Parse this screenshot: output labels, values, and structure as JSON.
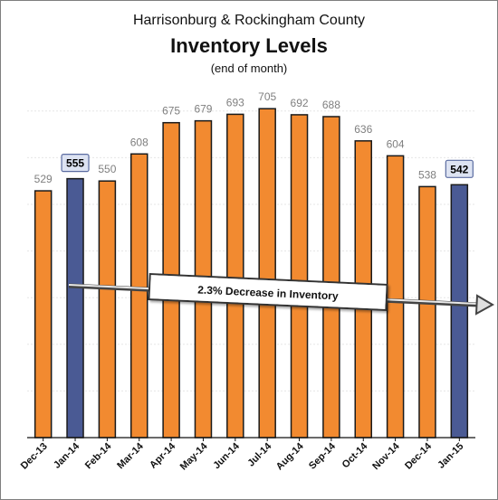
{
  "chart_data": {
    "type": "bar",
    "title": "Inventory Levels",
    "supertitle": "Harrisonburg & Rockingham County",
    "subtitle": "(end of month)",
    "categories": [
      "Dec-13",
      "Jan-14",
      "Feb-14",
      "Mar-14",
      "Apr-14",
      "May-14",
      "Jun-14",
      "Jul-14",
      "Aug-14",
      "Sep-14",
      "Oct-14",
      "Nov-14",
      "Dec-14",
      "Jan-15"
    ],
    "values": [
      529,
      555,
      550,
      608,
      675,
      679,
      693,
      705,
      692,
      688,
      636,
      604,
      538,
      542
    ],
    "highlighted": [
      "Jan-14",
      "Jan-15"
    ],
    "annotation": "2.3% Decrease in Inventory",
    "ylim": [
      0,
      750
    ],
    "xlabel": "",
    "ylabel": "",
    "grid": true,
    "colors": {
      "bar": "#f28a30",
      "bar_highlight": "#4a5a94",
      "bar_outline": "#1a1a1a",
      "label_box_fill": "#dde3f2",
      "label_box_stroke": "#5a6ba0"
    }
  }
}
